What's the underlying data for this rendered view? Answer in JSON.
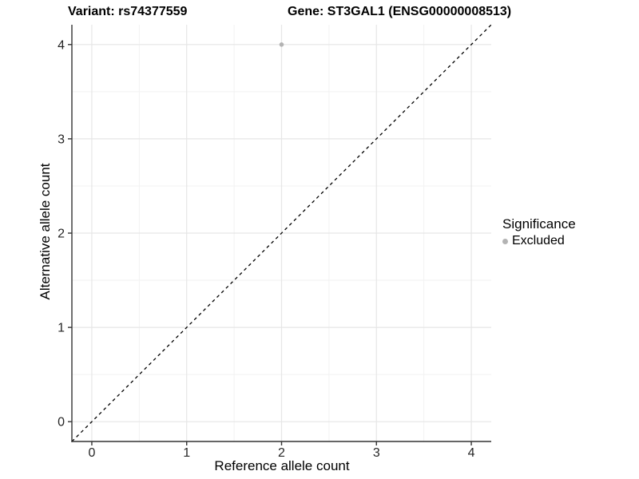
{
  "colors": {
    "background": "#ffffff",
    "grid_major": "#e6e6e6",
    "grid_minor": "#f2f2f2",
    "axis_line": "#333333",
    "tick_text": "#262626",
    "reference_line": "#000000",
    "point": "#b3b3b3"
  },
  "chart_data": {
    "type": "scatter",
    "titles": {
      "left": "Variant: rs74377559",
      "right": "Gene: ST3GAL1 (ENSG00000008513)"
    },
    "xlabel": "Reference allele count",
    "ylabel": "Alternative allele count",
    "xlim": [
      -0.21,
      4.21
    ],
    "ylim": [
      -0.21,
      4.21
    ],
    "x_ticks": [
      0,
      1,
      2,
      3,
      4
    ],
    "y_ticks": [
      0,
      1,
      2,
      3,
      4
    ],
    "x_minor_ticks": [
      0.5,
      1.5,
      2.5,
      3.5
    ],
    "y_minor_ticks": [
      0.5,
      1.5,
      2.5,
      3.5
    ],
    "grid": "major and minor, light gray on white",
    "reference_line": {
      "type": "identity y = x",
      "style": "dashed",
      "color": "#000000"
    },
    "series": [
      {
        "name": "Excluded",
        "color": "#b3b3b3",
        "points": [
          {
            "x": 2,
            "y": 4
          }
        ]
      }
    ],
    "legend": {
      "title": "Significance",
      "position": "right",
      "items": [
        {
          "label": "Excluded",
          "color": "#b3b3b3"
        }
      ]
    }
  }
}
